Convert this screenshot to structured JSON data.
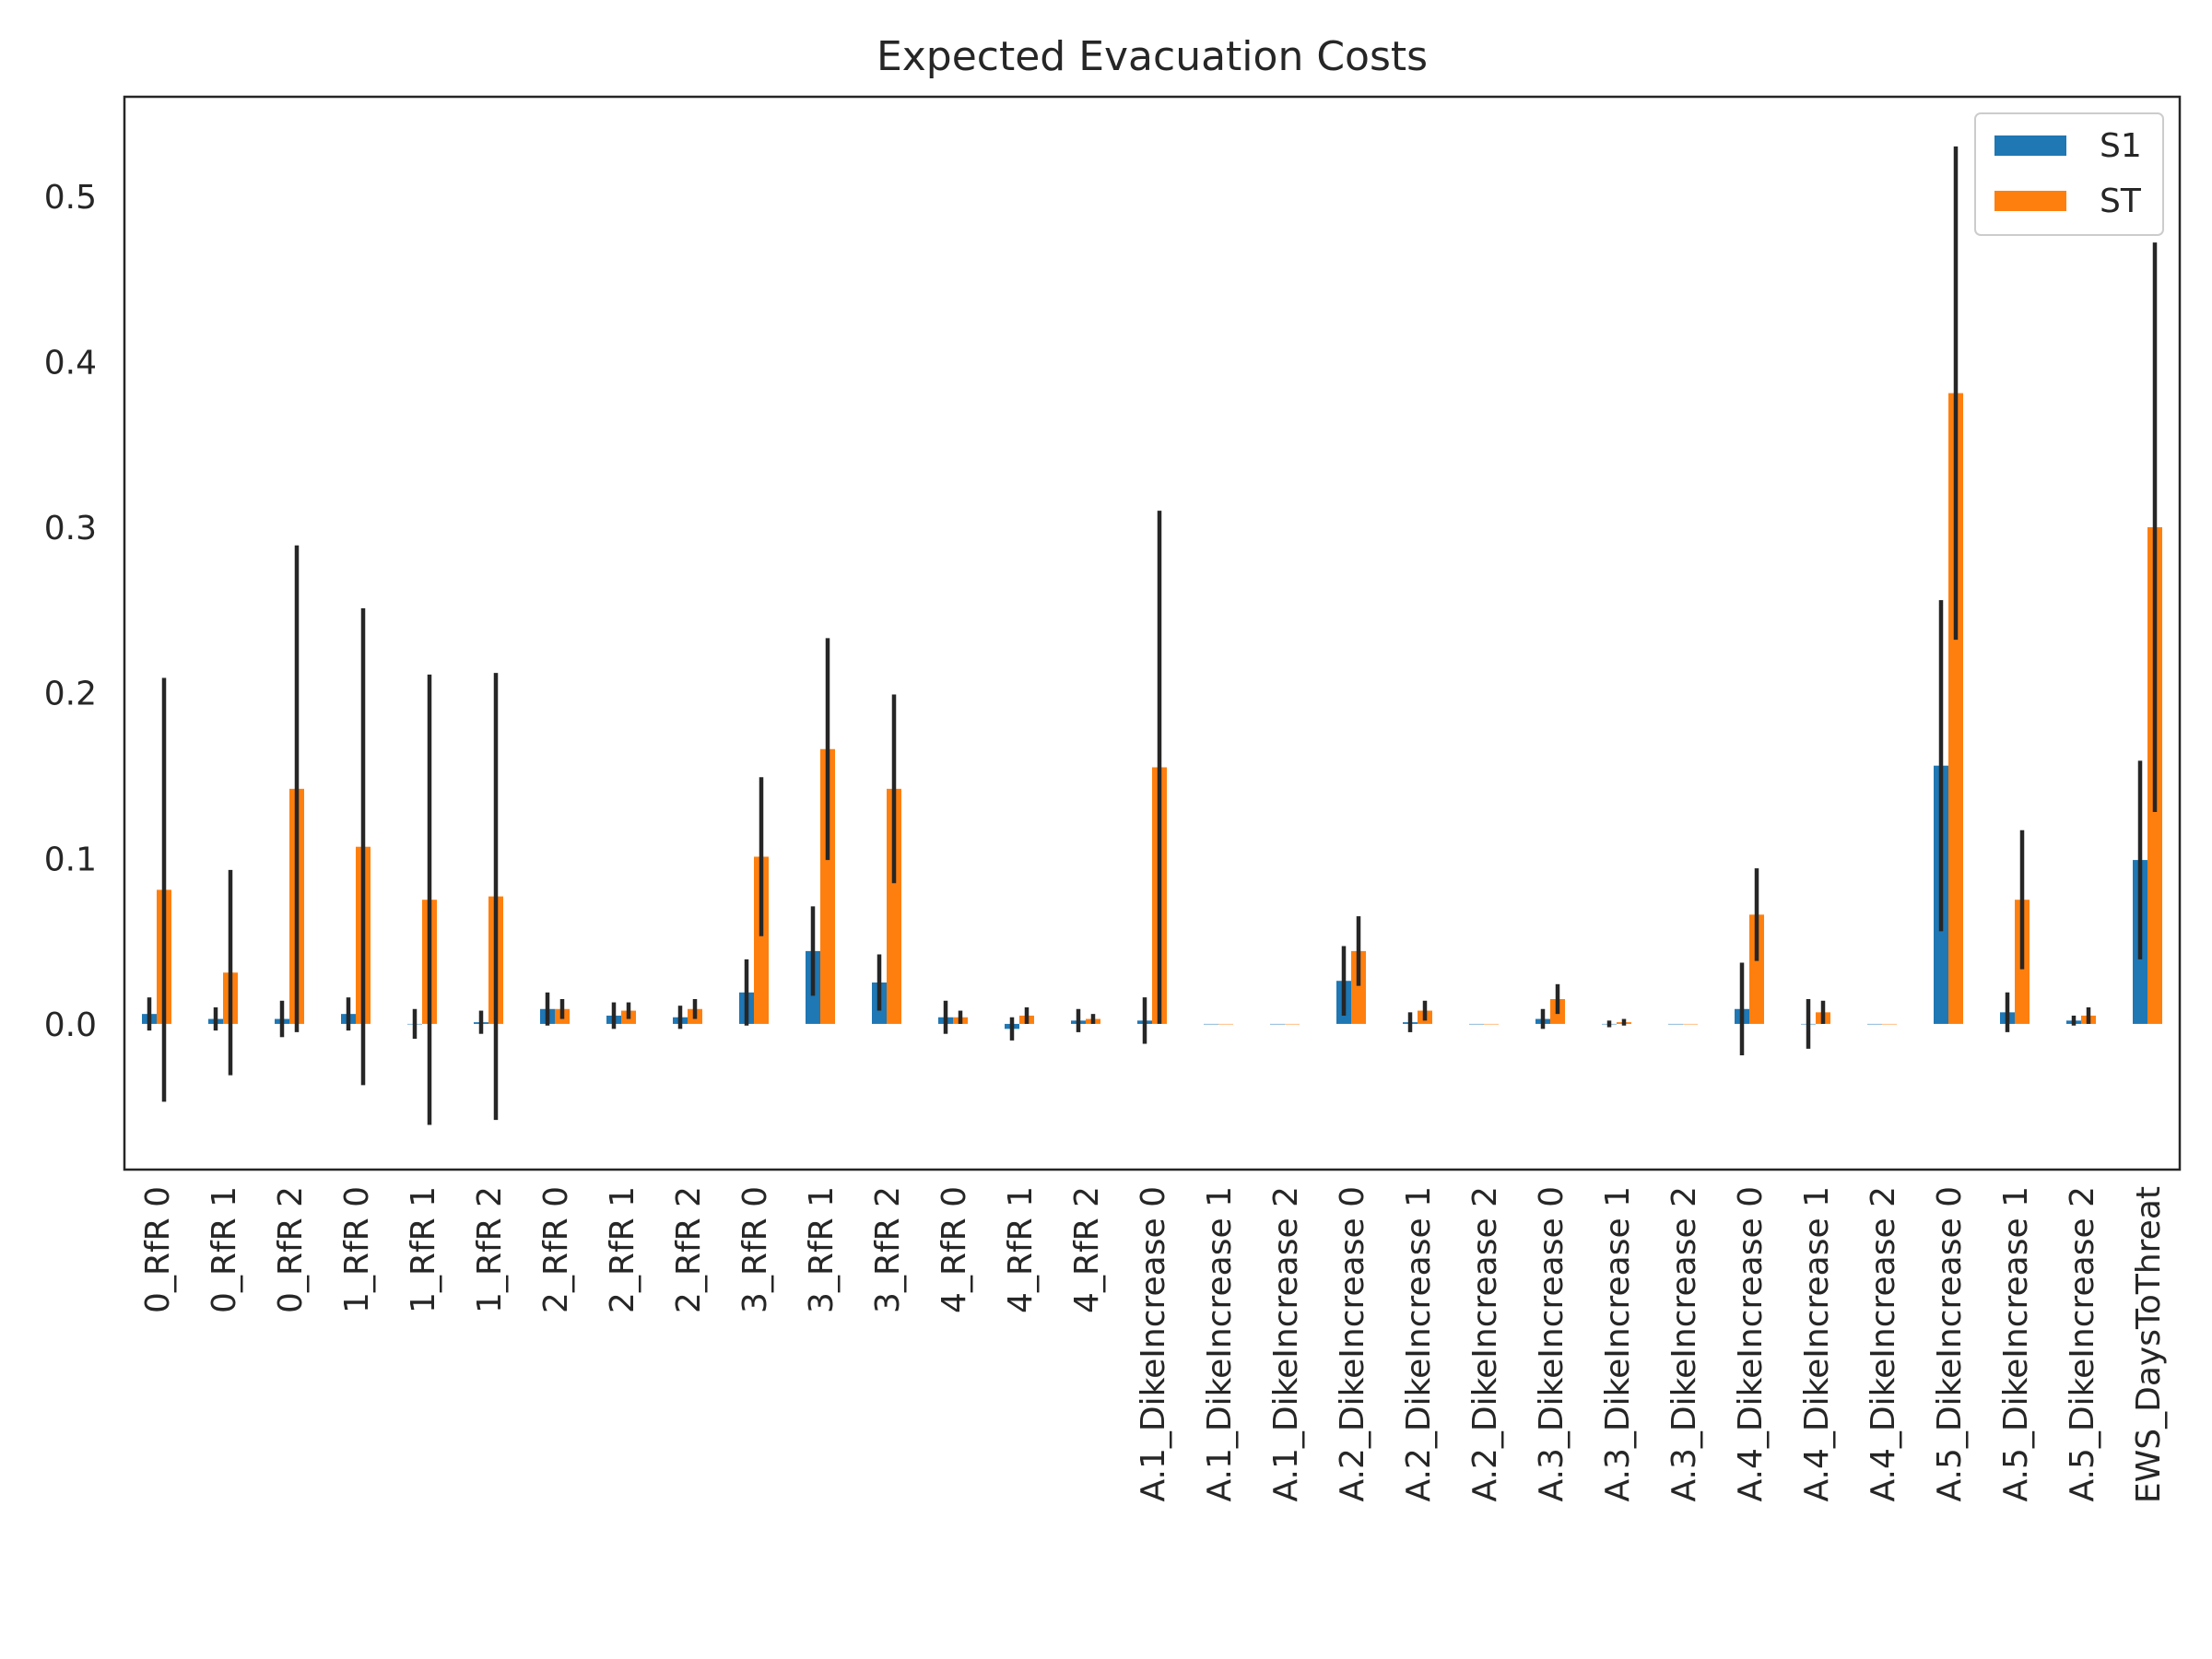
{
  "chart_data": {
    "type": "bar",
    "title": "Expected Evacuation Costs",
    "xlabel": "",
    "ylabel": "",
    "ylim": [
      -0.088,
      0.56
    ],
    "yticks": [
      0.0,
      0.1,
      0.2,
      0.3,
      0.4,
      0.5
    ],
    "ytick_labels": [
      "0.0",
      "0.1",
      "0.2",
      "0.3",
      "0.4",
      "0.5"
    ],
    "grid": false,
    "legend_position": "top-right",
    "categories": [
      "0_RfR 0",
      "0_RfR 1",
      "0_RfR 2",
      "1_RfR 0",
      "1_RfR 1",
      "1_RfR 2",
      "2_RfR 0",
      "2_RfR 1",
      "2_RfR 2",
      "3_RfR 0",
      "3_RfR 1",
      "3_RfR 2",
      "4_RfR 0",
      "4_RfR 1",
      "4_RfR 2",
      "A.1_DikeIncrease 0",
      "A.1_DikeIncrease 1",
      "A.1_DikeIncrease 2",
      "A.2_DikeIncrease 0",
      "A.2_DikeIncrease 1",
      "A.2_DikeIncrease 2",
      "A.3_DikeIncrease 0",
      "A.3_DikeIncrease 1",
      "A.3_DikeIncrease 2",
      "A.4_DikeIncrease 0",
      "A.4_DikeIncrease 1",
      "A.4_DikeIncrease 2",
      "A.5_DikeIncrease 0",
      "A.5_DikeIncrease 1",
      "A.5_DikeIncrease 2",
      "EWS_DaysToThreat"
    ],
    "series": [
      {
        "name": "S1",
        "color": "#1f77b4",
        "values": [
          0.006,
          0.003,
          0.003,
          0.006,
          0.0,
          0.001,
          0.009,
          0.005,
          0.004,
          0.019,
          0.044,
          0.025,
          0.004,
          -0.003,
          0.002,
          0.002,
          0.0,
          0.0,
          0.026,
          0.001,
          0.0,
          0.003,
          0.0,
          0.0,
          0.009,
          0.0,
          0.0,
          0.156,
          0.007,
          0.002,
          0.099
        ],
        "errors": [
          0.01,
          0.007,
          0.011,
          0.01,
          0.009,
          0.007,
          0.01,
          0.008,
          0.007,
          0.02,
          0.027,
          0.017,
          0.01,
          0.007,
          0.007,
          0.014,
          0.0,
          0.0,
          0.021,
          0.006,
          0.0,
          0.006,
          0.002,
          0.0,
          0.028,
          0.015,
          0.0,
          0.1,
          0.012,
          0.003,
          0.06
        ]
      },
      {
        "name": "ST",
        "color": "#ff7f0e",
        "values": [
          0.081,
          0.031,
          0.142,
          0.107,
          0.075,
          0.077,
          0.009,
          0.008,
          0.009,
          0.101,
          0.166,
          0.142,
          0.004,
          0.005,
          0.003,
          0.155,
          0.0,
          0.0,
          0.044,
          0.008,
          0.0,
          0.015,
          0.001,
          0.0,
          0.066,
          0.007,
          0.0,
          0.381,
          0.075,
          0.005,
          0.3
        ],
        "errors": [
          0.128,
          0.062,
          0.147,
          0.144,
          0.136,
          0.135,
          0.006,
          0.005,
          0.006,
          0.048,
          0.067,
          0.057,
          0.004,
          0.005,
          0.003,
          0.155,
          0.0,
          0.0,
          0.021,
          0.006,
          0.0,
          0.009,
          0.002,
          0.0,
          0.028,
          0.007,
          0.0,
          0.149,
          0.042,
          0.005,
          0.172
        ]
      }
    ]
  }
}
